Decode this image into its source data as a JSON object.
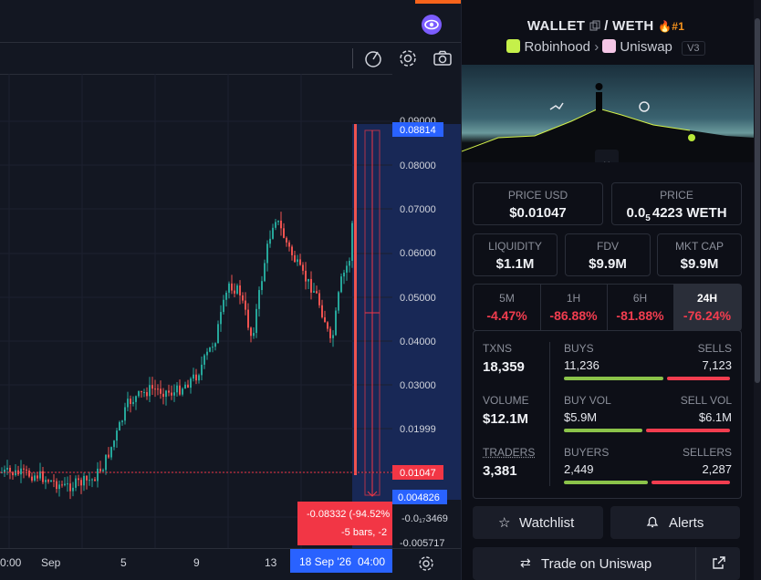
{
  "chart": {
    "price_ticks": [
      "0.08814",
      "0.08000",
      "0.07000",
      "0.06000",
      "0.05000",
      "0.04000",
      "0.03000",
      "0.01999",
      "0.01047",
      "0.004826",
      "-0.0₁₇3469",
      "-0.005717"
    ],
    "top_tick_partial": "0.09000",
    "time_ticks": [
      "0:00",
      "Sep",
      "5",
      "9",
      "13"
    ],
    "crosshair_date": "18 Sep '26",
    "crosshair_time": "04:00",
    "measure_line1": "-0.08332 (-94.52%",
    "measure_line2": "-5 bars, -2"
  },
  "toolbar": {
    "alert_icon": "alert-draw-icon",
    "settings_icon": "gear-icon",
    "snapshot_icon": "camera-icon"
  },
  "pair": {
    "base": "WALLET",
    "quote": "WETH",
    "separator": "/",
    "rank": "#1",
    "chain": "Robinhood",
    "dex": "Uniswap",
    "version": "V3"
  },
  "price": {
    "usd_label": "PRICE USD",
    "usd_value": "$0.01047",
    "native_label": "PRICE",
    "native_prefix": "0.0",
    "native_sub": "5",
    "native_rest": "4223 WETH"
  },
  "metrics": [
    {
      "label": "LIQUIDITY",
      "value": "$1.1M"
    },
    {
      "label": "FDV",
      "value": "$9.9M"
    },
    {
      "label": "MKT CAP",
      "value": "$9.9M"
    }
  ],
  "timeframes": [
    {
      "label": "5M",
      "value": "-4.47%"
    },
    {
      "label": "1H",
      "value": "-86.88%"
    },
    {
      "label": "6H",
      "value": "-81.88%"
    },
    {
      "label": "24H",
      "value": "-76.24%"
    }
  ],
  "stats": {
    "txns_label": "TXNS",
    "txns": "18,359",
    "volume_label": "VOLUME",
    "volume": "$12.1M",
    "traders_label": "TRADERS",
    "traders": "3,381",
    "buys_label": "BUYS",
    "buys": "11,236",
    "sells_label": "SELLS",
    "sells": "7,123",
    "buy_vol_label": "BUY VOL",
    "buy_vol": "$5.9M",
    "sell_vol_label": "SELL VOL",
    "sell_vol": "$6.1M",
    "buyers_label": "BUYERS",
    "buyers": "2,449",
    "sellers_label": "SELLERS",
    "sellers": "2,287"
  },
  "actions": {
    "watchlist": "Watchlist",
    "alerts": "Alerts",
    "trade": "Trade on Uniswap"
  },
  "colors": {
    "up": "#26a69a",
    "down": "#ef5350",
    "green_bar": "#8bc34a",
    "red_text": "#f23d4f",
    "accent_blue": "#2962ff"
  }
}
